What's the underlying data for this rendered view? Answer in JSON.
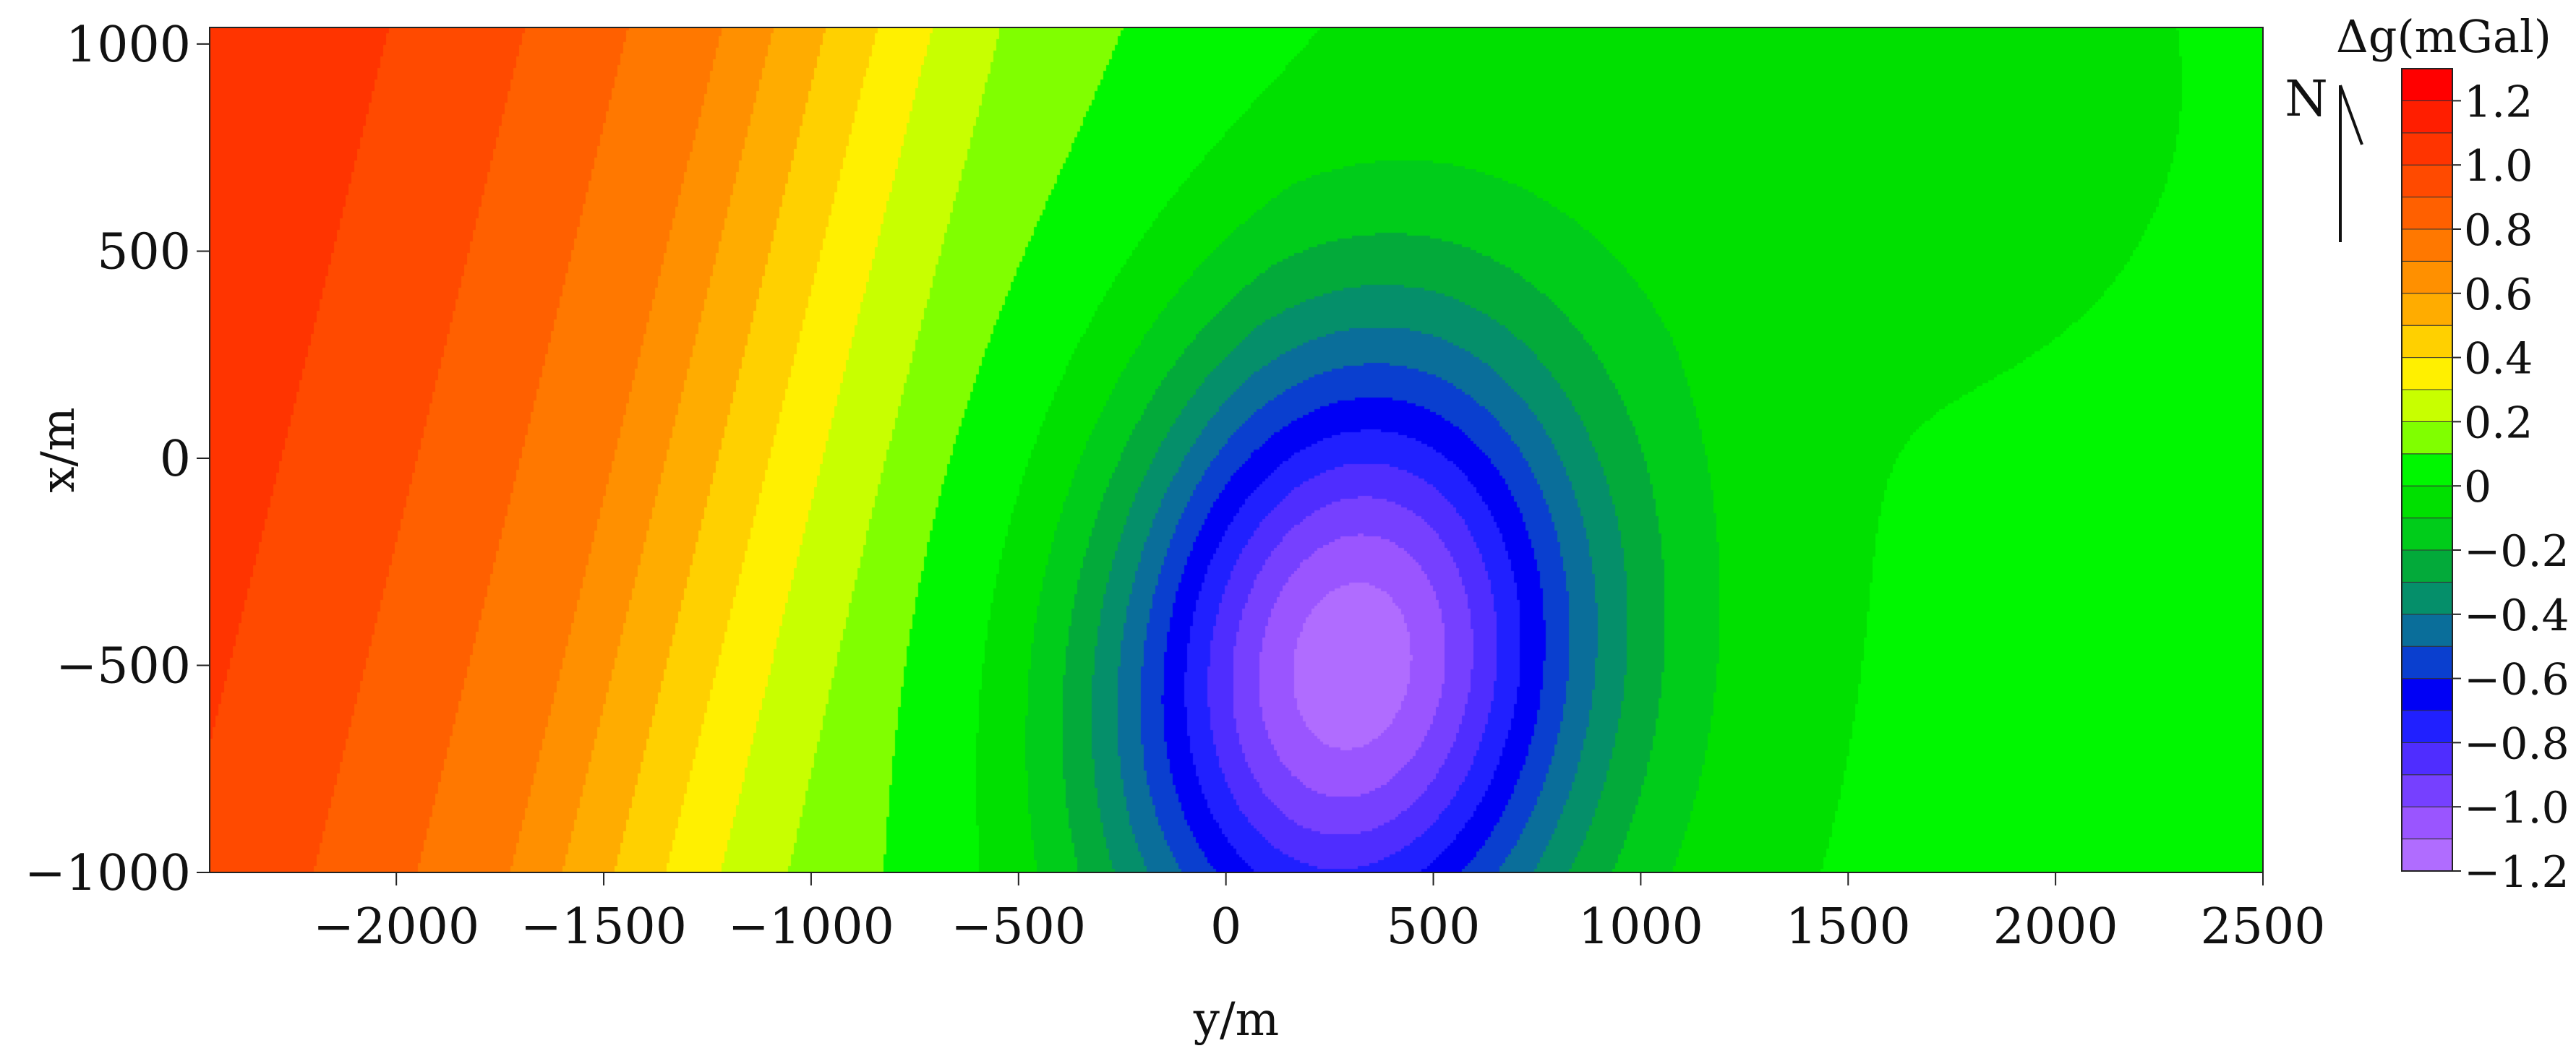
{
  "chart_data": {
    "type": "heatmap",
    "subtype": "filled-contour",
    "title": "",
    "xlabel": "y/m",
    "ylabel": "x/m",
    "xlim": [
      -2450,
      2500
    ],
    "ylim": [
      -1000,
      1040
    ],
    "x_ticks": [
      -2000,
      -1500,
      -1000,
      -500,
      0,
      500,
      1000,
      1500,
      2000,
      2500
    ],
    "x_tick_labels": [
      "−2000",
      "−1500",
      "−1000",
      "−500",
      "0",
      "500",
      "1000",
      "1500",
      "2000",
      "2500"
    ],
    "y_ticks": [
      1000,
      500,
      0,
      -500,
      -1000
    ],
    "y_tick_labels": [
      "1000",
      "500",
      "0",
      "−500",
      "−1000"
    ],
    "grid": false,
    "north_arrow_label": "N",
    "colorbar": {
      "title": "Δg(mGal)",
      "position": "right",
      "levels": [
        -1.2,
        -1.1,
        -1.0,
        -0.9,
        -0.8,
        -0.7,
        -0.6,
        -0.5,
        -0.4,
        -0.3,
        -0.2,
        -0.1,
        0,
        0.1,
        0.2,
        0.3,
        0.4,
        0.5,
        0.6,
        0.7,
        0.8,
        0.9,
        1.0,
        1.1,
        1.2,
        1.3
      ],
      "colors": [
        "#b06cff",
        "#9a55ff",
        "#7640ff",
        "#4f2dff",
        "#2020ff",
        "#0000f5",
        "#0a3fcf",
        "#0a6e9a",
        "#058f6a",
        "#03aa3a",
        "#00cc1a",
        "#00e000",
        "#00f700",
        "#80ff00",
        "#c8ff00",
        "#fff000",
        "#ffd000",
        "#ffac00",
        "#ff9000",
        "#ff7800",
        "#ff6000",
        "#ff4a00",
        "#ff3400",
        "#ff1e00",
        "#ff0000"
      ],
      "tick_values": [
        1.2,
        1.0,
        0.8,
        0.6,
        0.4,
        0.2,
        0,
        -0.2,
        -0.4,
        -0.6,
        -0.8,
        -1.0,
        -1.2
      ],
      "tick_labels": [
        "1.2",
        "1.0",
        "0.8",
        "0.6",
        "0.4",
        "0.2",
        "0",
        "−0.2",
        "−0.4",
        "−0.6",
        "−0.8",
        "−1.0",
        "−1.2"
      ]
    },
    "field": {
      "background_trend": [
        [
          -2450,
          1.05
        ],
        [
          -2000,
          0.92
        ],
        [
          -1500,
          0.72
        ],
        [
          -1000,
          0.32
        ],
        [
          -700,
          0.14
        ],
        [
          0,
          0.02
        ],
        [
          1000,
          -0.01
        ],
        [
          2000,
          0.02
        ],
        [
          2500,
          0.04
        ]
      ],
      "trend_shift_per_x": -0.25,
      "low_center": [
        300,
        -500
      ],
      "low_amplitude": -1.18,
      "low_radius_y": 560,
      "low_radius_x": 800,
      "low_rotation_deg": 8,
      "secondary_low_center": [
        1750,
        850
      ],
      "secondary_low_amplitude": -0.08,
      "secondary_low_radius": 500
    }
  }
}
